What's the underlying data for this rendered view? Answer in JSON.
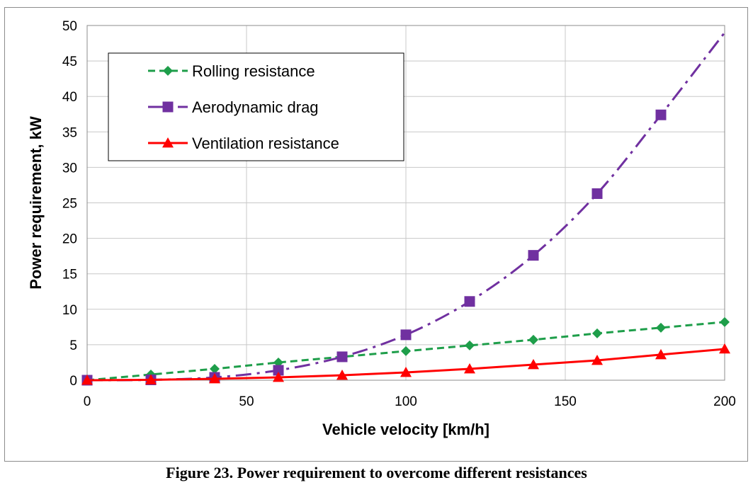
{
  "caption": "Figure 23. Power requirement to overcome different resistances",
  "chart_data": {
    "type": "line",
    "title": "",
    "xlabel": "Vehicle velocity [km/h]",
    "ylabel": "Power requirement, kW",
    "xlim": [
      0,
      200
    ],
    "ylim": [
      0,
      50
    ],
    "xticks": [
      0,
      50,
      100,
      150,
      200
    ],
    "yticks": [
      0,
      5,
      10,
      15,
      20,
      25,
      30,
      35,
      40,
      45,
      50
    ],
    "grid": true,
    "legend_position": "top-left",
    "series": [
      {
        "name": "Rolling resistance",
        "color": "#1e9e4a",
        "line_style": "dashed",
        "marker": "diamond",
        "x": [
          0,
          20,
          40,
          60,
          80,
          100,
          120,
          140,
          160,
          180,
          200
        ],
        "y": [
          0,
          0.8,
          1.6,
          2.5,
          3.3,
          4.1,
          4.9,
          5.7,
          6.6,
          7.4,
          8.2
        ]
      },
      {
        "name": "Aerodynamic drag",
        "color": "#7030a0",
        "line_style": "dash-dot",
        "marker": "square",
        "x": [
          0,
          20,
          40,
          60,
          80,
          100,
          120,
          140,
          160,
          180,
          200
        ],
        "y": [
          0,
          0.05,
          0.4,
          1.4,
          3.3,
          6.4,
          11.1,
          17.6,
          26.3,
          37.4,
          49.0
        ]
      },
      {
        "name": "Ventilation resistance",
        "color": "#ff0000",
        "line_style": "solid",
        "marker": "triangle",
        "x": [
          0,
          20,
          40,
          60,
          80,
          100,
          120,
          140,
          160,
          180,
          200
        ],
        "y": [
          0,
          0.05,
          0.2,
          0.4,
          0.7,
          1.1,
          1.6,
          2.2,
          2.8,
          3.6,
          4.4
        ]
      }
    ]
  }
}
